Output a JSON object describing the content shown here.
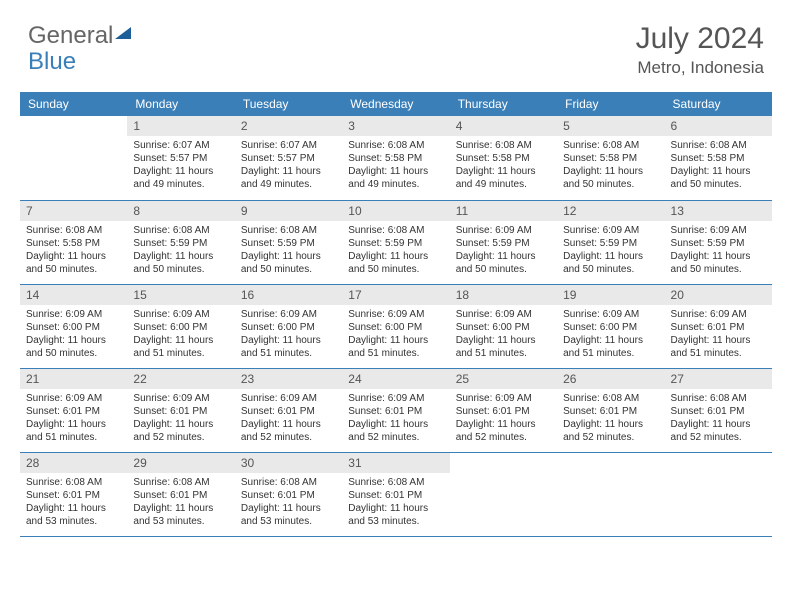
{
  "brand": {
    "part1": "General",
    "part2": "Blue"
  },
  "title": "July 2024",
  "location": "Metro, Indonesia",
  "colors": {
    "header_bg": "#3b7fb8",
    "header_text": "#ffffff",
    "daynum_bg": "#e9e9e9",
    "border": "#3b7fb8",
    "body_text": "#333333",
    "title_text": "#555555"
  },
  "day_headers": [
    "Sunday",
    "Monday",
    "Tuesday",
    "Wednesday",
    "Thursday",
    "Friday",
    "Saturday"
  ],
  "weeks": [
    [
      {
        "n": "",
        "sr": "",
        "ss": "",
        "dl": ""
      },
      {
        "n": "1",
        "sr": "Sunrise: 6:07 AM",
        "ss": "Sunset: 5:57 PM",
        "dl": "Daylight: 11 hours and 49 minutes."
      },
      {
        "n": "2",
        "sr": "Sunrise: 6:07 AM",
        "ss": "Sunset: 5:57 PM",
        "dl": "Daylight: 11 hours and 49 minutes."
      },
      {
        "n": "3",
        "sr": "Sunrise: 6:08 AM",
        "ss": "Sunset: 5:58 PM",
        "dl": "Daylight: 11 hours and 49 minutes."
      },
      {
        "n": "4",
        "sr": "Sunrise: 6:08 AM",
        "ss": "Sunset: 5:58 PM",
        "dl": "Daylight: 11 hours and 49 minutes."
      },
      {
        "n": "5",
        "sr": "Sunrise: 6:08 AM",
        "ss": "Sunset: 5:58 PM",
        "dl": "Daylight: 11 hours and 50 minutes."
      },
      {
        "n": "6",
        "sr": "Sunrise: 6:08 AM",
        "ss": "Sunset: 5:58 PM",
        "dl": "Daylight: 11 hours and 50 minutes."
      }
    ],
    [
      {
        "n": "7",
        "sr": "Sunrise: 6:08 AM",
        "ss": "Sunset: 5:58 PM",
        "dl": "Daylight: 11 hours and 50 minutes."
      },
      {
        "n": "8",
        "sr": "Sunrise: 6:08 AM",
        "ss": "Sunset: 5:59 PM",
        "dl": "Daylight: 11 hours and 50 minutes."
      },
      {
        "n": "9",
        "sr": "Sunrise: 6:08 AM",
        "ss": "Sunset: 5:59 PM",
        "dl": "Daylight: 11 hours and 50 minutes."
      },
      {
        "n": "10",
        "sr": "Sunrise: 6:08 AM",
        "ss": "Sunset: 5:59 PM",
        "dl": "Daylight: 11 hours and 50 minutes."
      },
      {
        "n": "11",
        "sr": "Sunrise: 6:09 AM",
        "ss": "Sunset: 5:59 PM",
        "dl": "Daylight: 11 hours and 50 minutes."
      },
      {
        "n": "12",
        "sr": "Sunrise: 6:09 AM",
        "ss": "Sunset: 5:59 PM",
        "dl": "Daylight: 11 hours and 50 minutes."
      },
      {
        "n": "13",
        "sr": "Sunrise: 6:09 AM",
        "ss": "Sunset: 5:59 PM",
        "dl": "Daylight: 11 hours and 50 minutes."
      }
    ],
    [
      {
        "n": "14",
        "sr": "Sunrise: 6:09 AM",
        "ss": "Sunset: 6:00 PM",
        "dl": "Daylight: 11 hours and 50 minutes."
      },
      {
        "n": "15",
        "sr": "Sunrise: 6:09 AM",
        "ss": "Sunset: 6:00 PM",
        "dl": "Daylight: 11 hours and 51 minutes."
      },
      {
        "n": "16",
        "sr": "Sunrise: 6:09 AM",
        "ss": "Sunset: 6:00 PM",
        "dl": "Daylight: 11 hours and 51 minutes."
      },
      {
        "n": "17",
        "sr": "Sunrise: 6:09 AM",
        "ss": "Sunset: 6:00 PM",
        "dl": "Daylight: 11 hours and 51 minutes."
      },
      {
        "n": "18",
        "sr": "Sunrise: 6:09 AM",
        "ss": "Sunset: 6:00 PM",
        "dl": "Daylight: 11 hours and 51 minutes."
      },
      {
        "n": "19",
        "sr": "Sunrise: 6:09 AM",
        "ss": "Sunset: 6:00 PM",
        "dl": "Daylight: 11 hours and 51 minutes."
      },
      {
        "n": "20",
        "sr": "Sunrise: 6:09 AM",
        "ss": "Sunset: 6:01 PM",
        "dl": "Daylight: 11 hours and 51 minutes."
      }
    ],
    [
      {
        "n": "21",
        "sr": "Sunrise: 6:09 AM",
        "ss": "Sunset: 6:01 PM",
        "dl": "Daylight: 11 hours and 51 minutes."
      },
      {
        "n": "22",
        "sr": "Sunrise: 6:09 AM",
        "ss": "Sunset: 6:01 PM",
        "dl": "Daylight: 11 hours and 52 minutes."
      },
      {
        "n": "23",
        "sr": "Sunrise: 6:09 AM",
        "ss": "Sunset: 6:01 PM",
        "dl": "Daylight: 11 hours and 52 minutes."
      },
      {
        "n": "24",
        "sr": "Sunrise: 6:09 AM",
        "ss": "Sunset: 6:01 PM",
        "dl": "Daylight: 11 hours and 52 minutes."
      },
      {
        "n": "25",
        "sr": "Sunrise: 6:09 AM",
        "ss": "Sunset: 6:01 PM",
        "dl": "Daylight: 11 hours and 52 minutes."
      },
      {
        "n": "26",
        "sr": "Sunrise: 6:08 AM",
        "ss": "Sunset: 6:01 PM",
        "dl": "Daylight: 11 hours and 52 minutes."
      },
      {
        "n": "27",
        "sr": "Sunrise: 6:08 AM",
        "ss": "Sunset: 6:01 PM",
        "dl": "Daylight: 11 hours and 52 minutes."
      }
    ],
    [
      {
        "n": "28",
        "sr": "Sunrise: 6:08 AM",
        "ss": "Sunset: 6:01 PM",
        "dl": "Daylight: 11 hours and 53 minutes."
      },
      {
        "n": "29",
        "sr": "Sunrise: 6:08 AM",
        "ss": "Sunset: 6:01 PM",
        "dl": "Daylight: 11 hours and 53 minutes."
      },
      {
        "n": "30",
        "sr": "Sunrise: 6:08 AM",
        "ss": "Sunset: 6:01 PM",
        "dl": "Daylight: 11 hours and 53 minutes."
      },
      {
        "n": "31",
        "sr": "Sunrise: 6:08 AM",
        "ss": "Sunset: 6:01 PM",
        "dl": "Daylight: 11 hours and 53 minutes."
      },
      {
        "n": "",
        "sr": "",
        "ss": "",
        "dl": ""
      },
      {
        "n": "",
        "sr": "",
        "ss": "",
        "dl": ""
      },
      {
        "n": "",
        "sr": "",
        "ss": "",
        "dl": ""
      }
    ]
  ]
}
